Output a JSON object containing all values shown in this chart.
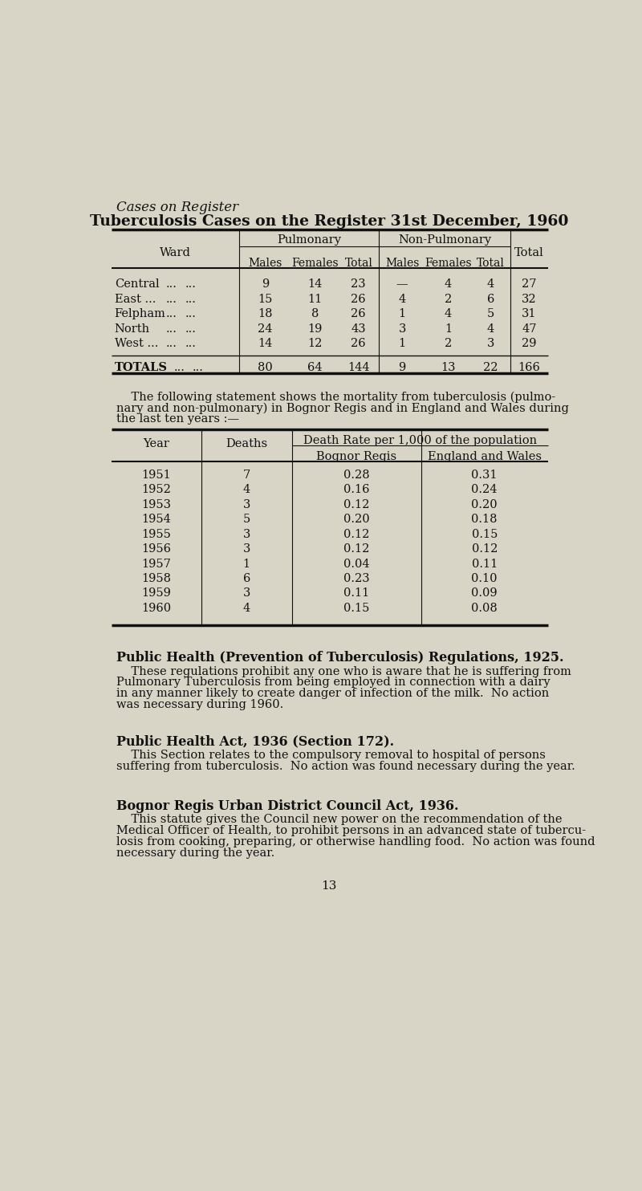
{
  "bg_color": "#d8d5c6",
  "text_color": "#1a1a1a",
  "page_title_italic": "Cases on Register",
  "table1_title": "Tuberculosis Cases on the Register 31st December, 1960",
  "section1_title": "Public Health (Prevention of Tuberculosis) Regulations, 1925.",
  "section1_body_lines": [
    "These regulations prohibit any one who is aware that he is suffering from",
    "Pulmonary Tuberculosis from being employed in connection with a dairy",
    "in any manner likely to create danger of infection of the milk.  No action",
    "was necessary during 1960."
  ],
  "section2_title": "Public Health Act, 1936 (Section 172).",
  "section2_body_lines": [
    "This Section relates to the compulsory removal to hospital of persons",
    "suffering from tuberculosis.  No action was found necessary during the year."
  ],
  "section3_title": "Bognor Regis Urban District Council Act, 1936.",
  "section3_body_lines": [
    "This statute gives the Council new power on the recommendation of the",
    "Medical Officer of Health, to prohibit persons in an advanced state of tubercu-",
    "losis from cooking, preparing, or otherwise handling food.  No action was found",
    "necessary during the year."
  ],
  "page_number": "13",
  "t1_wards": [
    "Central",
    "East ...",
    "Felpham",
    "North",
    "West ..."
  ],
  "t1_data": [
    [
      "9",
      "14",
      "23",
      "—",
      "4",
      "4",
      "27"
    ],
    [
      "15",
      "11",
      "26",
      "4",
      "2",
      "6",
      "32"
    ],
    [
      "18",
      "8",
      "26",
      "1",
      "4",
      "5",
      "31"
    ],
    [
      "24",
      "19",
      "43",
      "3",
      "1",
      "4",
      "47"
    ],
    [
      "14",
      "12",
      "26",
      "1",
      "2",
      "3",
      "29"
    ]
  ],
  "t1_totals": [
    "80",
    "64",
    "144",
    "9",
    "13",
    "22",
    "166"
  ],
  "t2_rows": [
    [
      "1951",
      "7",
      "0.28",
      "0.31"
    ],
    [
      "1952",
      "4",
      "0.16",
      "0.24"
    ],
    [
      "1953",
      "3",
      "0.12",
      "0.20"
    ],
    [
      "1954",
      "5",
      "0.20",
      "0.18"
    ],
    [
      "1955",
      "3",
      "0.12",
      "0.15"
    ],
    [
      "1956",
      "3",
      "0.12",
      "0.12"
    ],
    [
      "1957",
      "1",
      "0.04",
      "0.11"
    ],
    [
      "1958",
      "6",
      "0.23",
      "0.10"
    ],
    [
      "1959",
      "3",
      "0.11",
      "0.09"
    ],
    [
      "1960",
      "4",
      "0.15",
      "0.08"
    ]
  ]
}
